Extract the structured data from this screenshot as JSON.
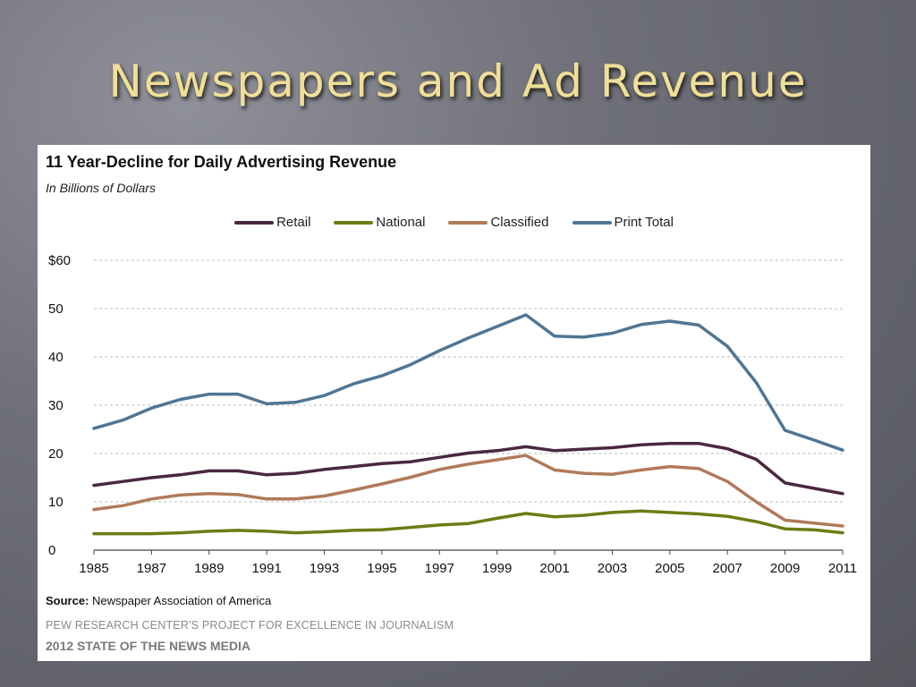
{
  "slide": {
    "title": "Newspapers and Ad Revenue"
  },
  "chart_data": {
    "type": "line",
    "title": "11 Year-Decline for Daily Advertising Revenue",
    "subtitle": "In Billions of Dollars",
    "xlabel": "",
    "ylabel": "",
    "x": [
      1985,
      1986,
      1987,
      1988,
      1989,
      1990,
      1991,
      1992,
      1993,
      1994,
      1995,
      1996,
      1997,
      1998,
      1999,
      2000,
      2001,
      2002,
      2003,
      2004,
      2005,
      2006,
      2007,
      2008,
      2009,
      2010,
      2011
    ],
    "x_tick_labels": [
      "1985",
      "1987",
      "1989",
      "1991",
      "1993",
      "1995",
      "1997",
      "1999",
      "2001",
      "2003",
      "2005",
      "2007",
      "2009",
      "2011"
    ],
    "y_tick_labels": [
      "0",
      "10",
      "20",
      "30",
      "40",
      "50",
      "$60"
    ],
    "ylim": [
      0,
      60
    ],
    "grid": true,
    "legend_position": "top-center",
    "series": [
      {
        "name": "Retail",
        "color": "#4a2840",
        "values": [
          13.4,
          14.2,
          15.0,
          15.6,
          16.4,
          16.4,
          15.6,
          15.9,
          16.7,
          17.3,
          17.9,
          18.3,
          19.2,
          20.1,
          20.6,
          21.4,
          20.6,
          20.9,
          21.2,
          21.8,
          22.1,
          22.1,
          21.0,
          18.8,
          13.9,
          12.8,
          11.7
        ]
      },
      {
        "name": "National",
        "color": "#6b7d14",
        "values": [
          3.4,
          3.4,
          3.4,
          3.6,
          3.9,
          4.1,
          3.9,
          3.6,
          3.8,
          4.1,
          4.2,
          4.7,
          5.2,
          5.5,
          6.6,
          7.6,
          6.9,
          7.2,
          7.8,
          8.1,
          7.8,
          7.5,
          7.0,
          5.9,
          4.4,
          4.2,
          3.6
        ]
      },
      {
        "name": "Classified",
        "color": "#b07a5a",
        "values": [
          8.4,
          9.2,
          10.6,
          11.4,
          11.7,
          11.5,
          10.6,
          10.6,
          11.2,
          12.4,
          13.7,
          15.1,
          16.7,
          17.8,
          18.7,
          19.6,
          16.6,
          15.9,
          15.7,
          16.6,
          17.3,
          16.9,
          14.2,
          10.0,
          6.2,
          5.6,
          5.0
        ]
      },
      {
        "name": "Print Total",
        "color": "#4f7694",
        "values": [
          25.2,
          26.9,
          29.4,
          31.2,
          32.3,
          32.3,
          30.3,
          30.6,
          32.0,
          34.4,
          36.1,
          38.4,
          41.3,
          43.9,
          46.3,
          48.7,
          44.3,
          44.1,
          44.9,
          46.7,
          47.4,
          46.6,
          42.2,
          34.7,
          24.8,
          22.8,
          20.7
        ]
      }
    ]
  },
  "footer": {
    "source_label": "Source:",
    "source_text": " Newspaper Association of America",
    "credit_line1": "PEW RESEARCH CENTER'S  PROJECT FOR EXCELLENCE IN JOURNALISM",
    "credit_line2": "2012 STATE OF THE NEWS MEDIA"
  }
}
